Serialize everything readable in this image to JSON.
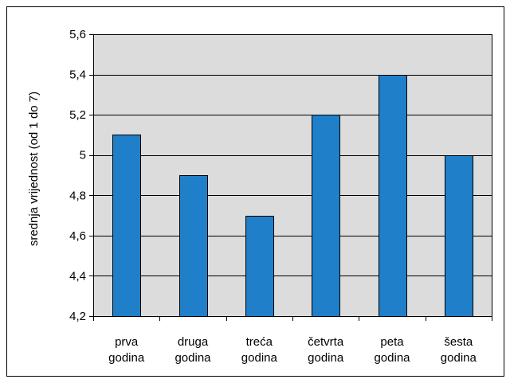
{
  "chart_data": {
    "type": "bar",
    "title": "",
    "xlabel": "",
    "ylabel": "srednja vrijednost (od 1 do 7)",
    "categories": [
      [
        "prva",
        "godina"
      ],
      [
        "druga",
        "godina"
      ],
      [
        "treća",
        "godina"
      ],
      [
        "četvrta",
        "godina"
      ],
      [
        "peta",
        "godina"
      ],
      [
        "šesta",
        "godina"
      ]
    ],
    "values": [
      5.1,
      4.9,
      4.7,
      5.2,
      5.4,
      5.0
    ],
    "ylim": [
      4.2,
      5.6
    ],
    "yticks": [
      4.2,
      4.4,
      4.6,
      4.8,
      5.0,
      5.2,
      5.4,
      5.6
    ],
    "ytick_labels": [
      "4,2",
      "4,4",
      "4,6",
      "4,8",
      "5",
      "5,2",
      "5,4",
      "5,6"
    ],
    "grid": true,
    "legend": "none",
    "colors": {
      "bar_fill": "#1f7fc9",
      "bar_stroke": "#000000",
      "plot_background": "#dcdcdc",
      "gridline": "#000000",
      "frame": "#000000"
    }
  }
}
